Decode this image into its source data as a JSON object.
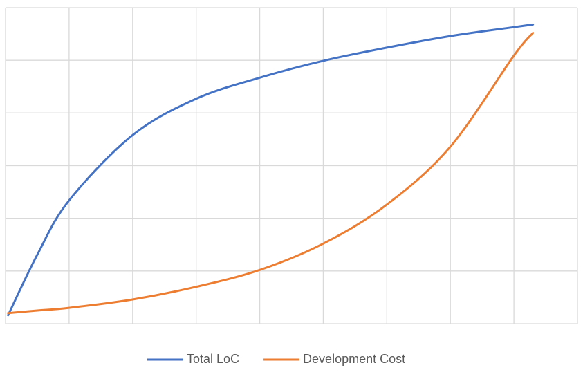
{
  "chart_data": {
    "type": "line",
    "x": [
      0.04,
      0.5,
      1,
      2,
      3,
      4,
      5,
      6,
      7,
      8,
      8.3
    ],
    "series": [
      {
        "name": "Total LoC",
        "color": "#4472c4",
        "values": [
          0.16,
          1.31,
          2.34,
          3.58,
          4.27,
          4.67,
          4.99,
          5.24,
          5.46,
          5.63,
          5.68
        ]
      },
      {
        "name": "Development Cost",
        "color": "#ed7d31",
        "values": [
          0.2,
          0.25,
          0.3,
          0.46,
          0.7,
          1.02,
          1.52,
          2.26,
          3.36,
          5.09,
          5.52
        ]
      }
    ],
    "xlim": [
      0,
      9
    ],
    "xticks": [
      0,
      1,
      2,
      3,
      4,
      5,
      6,
      7,
      8,
      9
    ],
    "ylim": [
      0,
      6
    ],
    "yticks": [
      0,
      1,
      2,
      3,
      4,
      5,
      6
    ],
    "grid": true,
    "legend": "bottom"
  }
}
